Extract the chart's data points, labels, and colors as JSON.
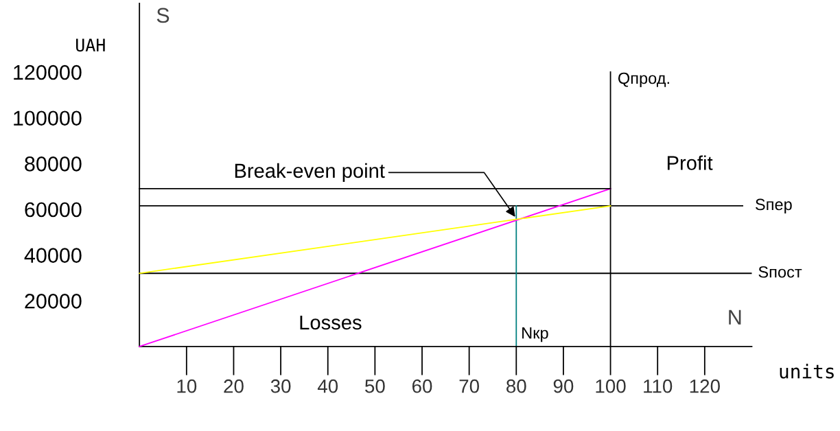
{
  "chart_data": {
    "type": "line",
    "xlabel": "units",
    "ylabel": "UAH",
    "x": [
      0,
      100
    ],
    "series": [
      {
        "color": "#ff00ff",
        "values": [
          0,
          69000
        ]
      },
      {
        "color": "#ffff00",
        "values": [
          32000,
          61500
        ]
      },
      {
        "color": "#000000",
        "values": [
          69000,
          69000
        ]
      }
    ],
    "xlim": [
      0,
      130
    ],
    "ylim": [
      0,
      150000
    ],
    "xticks": [
      10,
      20,
      30,
      40,
      50,
      60,
      70,
      80,
      90,
      100,
      110,
      120
    ],
    "yticks": [
      20000,
      40000,
      60000,
      80000,
      100000,
      120000
    ],
    "ref_lines": [
      {
        "axis": "y",
        "value": 61500,
        "label": "Sпер",
        "color": "#000000"
      },
      {
        "axis": "y",
        "value": 32000,
        "label": "Sпост",
        "color": "#000000"
      },
      {
        "axis": "x",
        "value": 80,
        "label": "Nкр",
        "color": "#008080"
      },
      {
        "axis": "x",
        "value": 100,
        "label": "Qпрод.",
        "color": "#000000"
      }
    ],
    "annotations": [
      "S",
      "N",
      "Profit",
      "Losses",
      {
        "text": "Break-even point",
        "x": 80,
        "y": 56000
      }
    ],
    "grid": false,
    "legend": false,
    "marker": "none",
    "line_style": "solid"
  }
}
